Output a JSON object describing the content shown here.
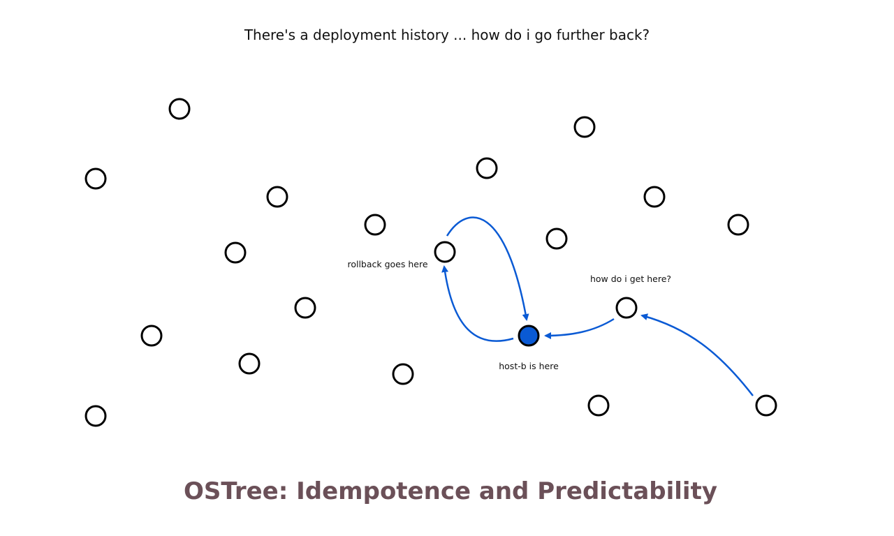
{
  "slide": {
    "subtitle": "There's a deployment history ... how do i go further back?",
    "title": "OSTree: Idempotence and Predictability"
  },
  "diagram": {
    "nodes": [
      {
        "id": "n1",
        "state": "empty"
      },
      {
        "id": "n2",
        "state": "empty"
      },
      {
        "id": "n3",
        "state": "empty"
      },
      {
        "id": "n4",
        "state": "empty"
      },
      {
        "id": "n5",
        "state": "empty"
      },
      {
        "id": "n6",
        "state": "empty"
      },
      {
        "id": "n7",
        "state": "empty"
      },
      {
        "id": "n8",
        "state": "empty"
      },
      {
        "id": "n9",
        "state": "empty"
      },
      {
        "id": "n10",
        "state": "empty"
      },
      {
        "id": "rollback",
        "state": "empty"
      },
      {
        "id": "n12",
        "state": "empty"
      },
      {
        "id": "n13",
        "state": "empty"
      },
      {
        "id": "n14",
        "state": "empty"
      },
      {
        "id": "n15",
        "state": "empty"
      },
      {
        "id": "n16",
        "state": "empty"
      },
      {
        "id": "target",
        "state": "empty"
      },
      {
        "id": "current",
        "state": "current"
      },
      {
        "id": "n19",
        "state": "empty"
      },
      {
        "id": "origin",
        "state": "empty"
      }
    ],
    "labels": [
      {
        "id": "rollback-label",
        "text": "rollback goes here",
        "node": "rollback"
      },
      {
        "id": "target-label",
        "text": "how do i get here?",
        "node": "target"
      },
      {
        "id": "current-label",
        "text": "host-b is here",
        "node": "current"
      }
    ],
    "edges": [
      {
        "from": "rollback",
        "to": "current"
      },
      {
        "from": "current",
        "to": "rollback"
      },
      {
        "from": "target",
        "to": "current"
      },
      {
        "from": "origin",
        "to": "target"
      }
    ]
  },
  "colors": {
    "node_stroke": "#000000",
    "current_fill": "#0a5ad4",
    "arrow": "#0a5ad4",
    "title": "#6b5058",
    "text": "#111111"
  }
}
